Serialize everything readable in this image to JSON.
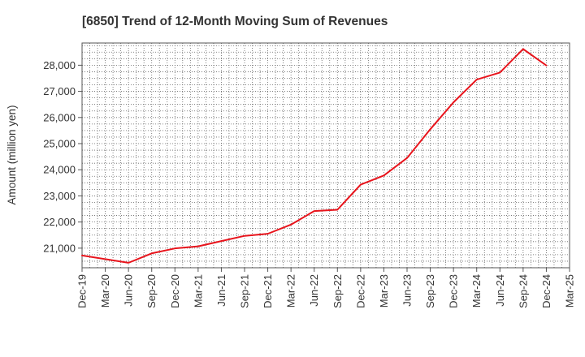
{
  "chart_data": {
    "type": "line",
    "title": "[6850]  Trend of 12-Month Moving Sum of Revenues",
    "xlabel": "",
    "ylabel": "Amount (million yen)",
    "ylim": [
      20250,
      28850
    ],
    "yticks": [
      21000,
      22000,
      23000,
      24000,
      25000,
      26000,
      27000,
      28000
    ],
    "ytick_labels": [
      "21,000",
      "22,000",
      "23,000",
      "24,000",
      "25,000",
      "26,000",
      "27,000",
      "28,000"
    ],
    "categories": [
      "Dec-19",
      "Mar-20",
      "Jun-20",
      "Sep-20",
      "Dec-20",
      "Mar-21",
      "Jun-21",
      "Sep-21",
      "Dec-21",
      "Mar-22",
      "Jun-22",
      "Sep-22",
      "Dec-22",
      "Mar-23",
      "Jun-23",
      "Sep-23",
      "Dec-23",
      "Mar-24",
      "Jun-24",
      "Sep-24",
      "Dec-24",
      "Mar-25"
    ],
    "grid": true,
    "series": [
      {
        "name": "",
        "color": "#e8141c",
        "values": [
          20720,
          20580,
          20440,
          20800,
          20990,
          21070,
          21270,
          21470,
          21550,
          21900,
          22420,
          22470,
          23430,
          23780,
          24450,
          25550,
          26580,
          27450,
          27720,
          28620,
          27990,
          null
        ]
      }
    ]
  }
}
